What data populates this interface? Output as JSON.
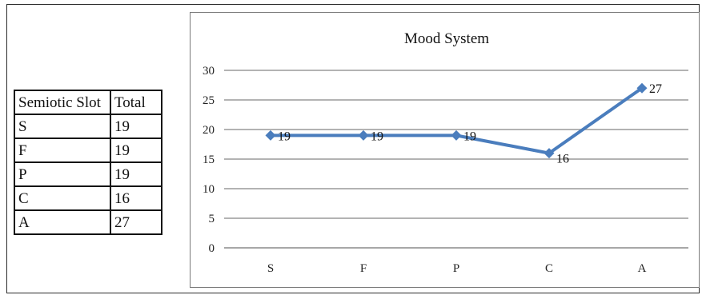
{
  "table": {
    "headers": [
      "Semiotic Slot",
      "Total"
    ],
    "rows": [
      [
        "S",
        "19"
      ],
      [
        "F",
        "19"
      ],
      [
        "P",
        "19"
      ],
      [
        "C",
        "16"
      ],
      [
        "A",
        "27"
      ]
    ]
  },
  "chart_data": {
    "type": "line",
    "title": "Mood System",
    "xlabel": "",
    "ylabel": "",
    "categories": [
      "S",
      "F",
      "P",
      "C",
      "A"
    ],
    "series": [
      {
        "values": [
          19,
          19,
          19,
          16,
          27
        ],
        "color": "#4a7dbd",
        "marker": "diamond"
      }
    ],
    "data_labels": true,
    "ylim": [
      0,
      30
    ],
    "yticks": [
      0,
      5,
      10,
      15,
      20,
      25,
      30
    ],
    "grid": true,
    "legend": false
  }
}
